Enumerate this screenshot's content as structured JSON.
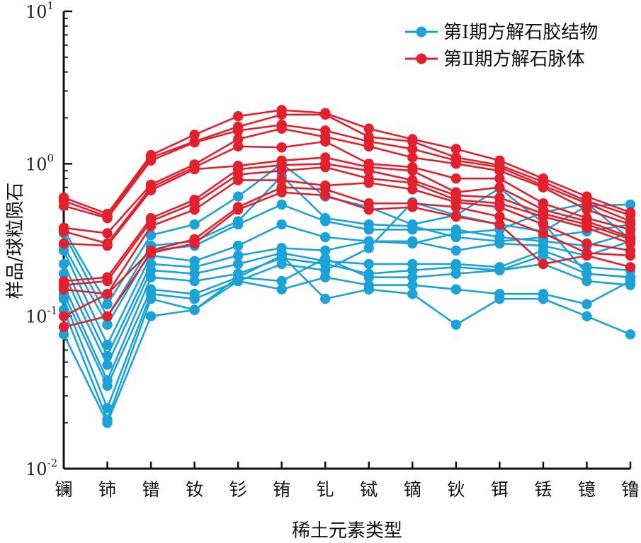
{
  "chart_data": {
    "type": "line",
    "yscale": "log",
    "ylim": [
      0.01,
      10
    ],
    "xlabel": "稀土元素类型",
    "ylabel": "样品/球粒陨石",
    "categories": [
      "镧",
      "铈",
      "镨",
      "钕",
      "钐",
      "铕",
      "钆",
      "铽",
      "镝",
      "钬",
      "铒",
      "铥",
      "镱",
      "镥"
    ],
    "yticks": [
      {
        "value": 10,
        "base": "10",
        "exp": "1"
      },
      {
        "value": 1,
        "base": "10",
        "exp": "0"
      },
      {
        "value": 0.1,
        "base": "10",
        "exp": "-1"
      },
      {
        "value": 0.01,
        "base": "10",
        "exp": "-2"
      }
    ],
    "legend_position": "top-right",
    "legend": [
      "第Ⅰ期方解石胶结物",
      "第Ⅱ期方解石脉体"
    ],
    "colors": [
      "#1ba3d8",
      "#e3202e"
    ],
    "series": [
      {
        "name": "第Ⅰ期方解石胶结物",
        "color": "#1ba3d8",
        "samples": [
          [
            0.37,
            0.12,
            0.34,
            0.4,
            0.61,
            1.0,
            0.61,
            0.52,
            0.4,
            0.46,
            0.4,
            0.36,
            0.53,
            0.54
          ],
          [
            0.35,
            0.099,
            0.29,
            0.31,
            0.42,
            0.83,
            0.44,
            0.4,
            0.39,
            0.33,
            0.31,
            0.33,
            0.36,
            0.4
          ],
          [
            0.29,
            0.088,
            0.27,
            0.29,
            0.4,
            0.54,
            0.42,
            0.37,
            0.37,
            0.37,
            0.33,
            0.31,
            0.29,
            0.35
          ],
          [
            0.27,
            0.065,
            0.25,
            0.23,
            0.29,
            0.4,
            0.33,
            0.31,
            0.3,
            0.35,
            0.37,
            0.48,
            0.55,
            0.32
          ],
          [
            0.22,
            0.055,
            0.22,
            0.21,
            0.25,
            0.28,
            0.27,
            0.31,
            0.31,
            0.27,
            0.3,
            0.29,
            0.25,
            0.31
          ],
          [
            0.19,
            0.048,
            0.2,
            0.19,
            0.22,
            0.26,
            0.23,
            0.22,
            0.22,
            0.22,
            0.21,
            0.27,
            0.21,
            0.2
          ],
          [
            0.16,
            0.038,
            0.18,
            0.17,
            0.19,
            0.24,
            0.22,
            0.19,
            0.2,
            0.21,
            0.2,
            0.25,
            0.19,
            0.18
          ],
          [
            0.14,
            0.035,
            0.15,
            0.14,
            0.18,
            0.17,
            0.24,
            0.18,
            0.18,
            0.19,
            0.2,
            0.22,
            0.17,
            0.16
          ],
          [
            0.13,
            0.025,
            0.14,
            0.13,
            0.17,
            0.15,
            0.18,
            0.16,
            0.16,
            0.15,
            0.14,
            0.14,
            0.12,
            0.17
          ],
          [
            0.11,
            0.021,
            0.13,
            0.11,
            0.18,
            0.25,
            0.13,
            0.15,
            0.14,
            0.088,
            0.13,
            0.13,
            0.1,
            0.076
          ],
          [
            0.076,
            0.02,
            0.1,
            0.11,
            0.17,
            0.22,
            0.2,
            0.28,
            0.56,
            0.46,
            0.69,
            0.41,
            0.19,
            0.18
          ]
        ]
      },
      {
        "name": "第Ⅱ期方解石脉体",
        "color": "#e3202e",
        "samples": [
          [
            0.6,
            0.47,
            1.14,
            1.55,
            2.05,
            2.25,
            2.15,
            1.7,
            1.45,
            1.25,
            1.05,
            0.8,
            0.61,
            0.48
          ],
          [
            0.57,
            0.45,
            1.1,
            1.4,
            1.75,
            2.1,
            2.1,
            1.5,
            1.4,
            1.1,
            0.98,
            0.76,
            0.57,
            0.46
          ],
          [
            0.53,
            0.44,
            1.05,
            1.38,
            1.65,
            1.8,
            1.65,
            1.4,
            1.25,
            1.05,
            0.95,
            0.72,
            0.55,
            0.42
          ],
          [
            0.38,
            0.35,
            0.73,
            0.99,
            1.45,
            1.7,
            1.5,
            1.3,
            1.1,
            1.0,
            0.9,
            0.7,
            0.5,
            0.4
          ],
          [
            0.36,
            0.3,
            0.7,
            0.95,
            1.3,
            1.28,
            1.4,
            1.0,
            0.95,
            0.8,
            0.8,
            0.55,
            0.44,
            0.37
          ],
          [
            0.3,
            0.29,
            0.67,
            0.92,
            0.97,
            1.05,
            1.1,
            0.95,
            0.9,
            0.65,
            0.7,
            0.5,
            0.42,
            0.33
          ],
          [
            0.17,
            0.18,
            0.44,
            0.58,
            0.92,
            0.98,
            1.0,
            0.9,
            0.78,
            0.62,
            0.6,
            0.47,
            0.4,
            0.32
          ],
          [
            0.16,
            0.17,
            0.42,
            0.55,
            0.85,
            0.9,
            0.95,
            0.8,
            0.75,
            0.58,
            0.55,
            0.45,
            0.38,
            0.3
          ],
          [
            0.15,
            0.14,
            0.39,
            0.5,
            0.78,
            0.78,
            0.72,
            0.75,
            0.68,
            0.56,
            0.52,
            0.4,
            0.3,
            0.27
          ],
          [
            0.1,
            0.14,
            0.27,
            0.32,
            0.52,
            0.7,
            0.68,
            0.55,
            0.55,
            0.52,
            0.45,
            0.35,
            0.26,
            0.25
          ],
          [
            0.085,
            0.1,
            0.26,
            0.3,
            0.5,
            0.65,
            0.62,
            0.5,
            0.52,
            0.45,
            0.4,
            0.22,
            0.25,
            0.21
          ]
        ]
      }
    ]
  }
}
